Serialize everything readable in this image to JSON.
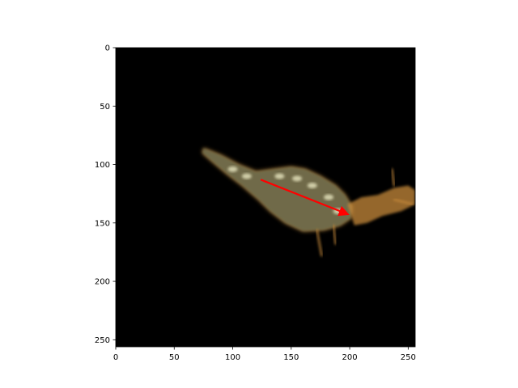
{
  "chart_data": {
    "type": "image",
    "title": "",
    "xlabel": "",
    "ylabel": "",
    "xlim": [
      0,
      256
    ],
    "ylim": [
      256,
      0
    ],
    "x_ticks": [
      0,
      50,
      100,
      150,
      200,
      250
    ],
    "y_ticks": [
      0,
      50,
      100,
      150,
      200,
      250
    ],
    "x_tick_labels": [
      "0",
      "50",
      "100",
      "150",
      "200",
      "250"
    ],
    "y_tick_labels": [
      "0",
      "50",
      "100",
      "150",
      "200",
      "250"
    ],
    "background_color": "#000000",
    "arrow": {
      "start": [
        124,
        113
      ],
      "end": [
        197,
        142
      ],
      "color": "#ff0000"
    },
    "cell": {
      "description": "fluorescent elongated cell with protrusions",
      "body_outline": [
        [
          75,
          86
        ],
        [
          90,
          92
        ],
        [
          105,
          100
        ],
        [
          120,
          106
        ],
        [
          135,
          104
        ],
        [
          150,
          102
        ],
        [
          162,
          104
        ],
        [
          175,
          110
        ],
        [
          188,
          118
        ],
        [
          196,
          126
        ],
        [
          202,
          136
        ],
        [
          201,
          146
        ],
        [
          192,
          152
        ],
        [
          178,
          156
        ],
        [
          160,
          157
        ],
        [
          145,
          150
        ],
        [
          132,
          140
        ],
        [
          122,
          130
        ],
        [
          108,
          118
        ],
        [
          95,
          108
        ],
        [
          82,
          97
        ],
        [
          74,
          90
        ]
      ],
      "tail_outline": [
        [
          198,
          134
        ],
        [
          210,
          128
        ],
        [
          224,
          126
        ],
        [
          238,
          120
        ],
        [
          250,
          118
        ],
        [
          256,
          122
        ],
        [
          256,
          134
        ],
        [
          244,
          140
        ],
        [
          228,
          144
        ],
        [
          215,
          150
        ],
        [
          204,
          152
        ]
      ],
      "highlights": [
        [
          100,
          104
        ],
        [
          112,
          110
        ],
        [
          140,
          110
        ],
        [
          155,
          112
        ],
        [
          168,
          118
        ],
        [
          182,
          128
        ],
        [
          190,
          140
        ]
      ],
      "protrusions": [
        [
          [
            150,
            150
          ],
          [
            150,
            168
          ]
        ],
        [
          [
            172,
            156
          ],
          [
            176,
            178
          ]
        ],
        [
          [
            186,
            152
          ],
          [
            188,
            168
          ]
        ],
        [
          [
            238,
            118
          ],
          [
            236,
            104
          ]
        ],
        [
          [
            238,
            130
          ],
          [
            254,
            134
          ]
        ]
      ],
      "colors": {
        "body": "#6f6a4a",
        "highlight": "#e8e6c0",
        "edge": "#c78a3a"
      }
    }
  }
}
